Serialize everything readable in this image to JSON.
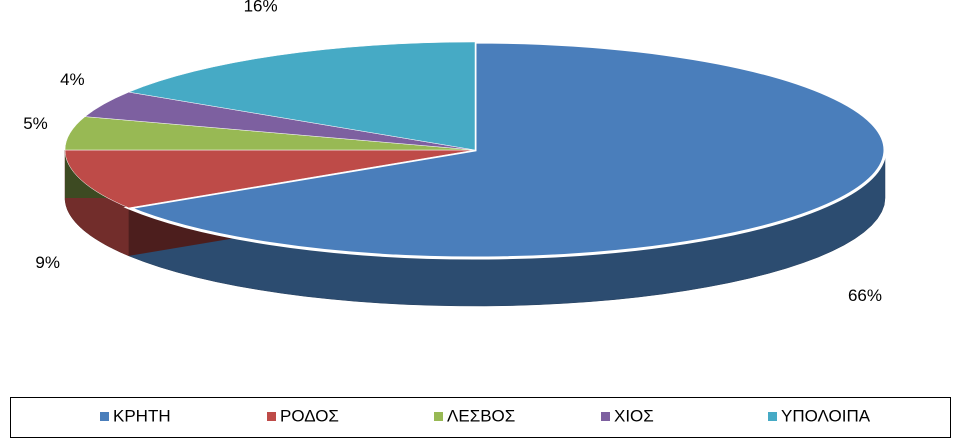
{
  "chart_data": {
    "type": "pie3d",
    "categories": [
      "ΚΡΗΤΗ",
      "ΡΟΔΟΣ",
      "ΛΕΣΒΟΣ",
      "ΧΙΟΣ",
      "ΥΠΟΛΟΙΠΑ"
    ],
    "values": [
      66,
      9,
      5,
      4,
      16
    ],
    "value_labels": [
      "66%",
      "9%",
      "5%",
      "4%",
      "16%"
    ],
    "colors": [
      "#4a7ebb",
      "#be4b48",
      "#98b954",
      "#7d60a0",
      "#46aac5"
    ],
    "legend": "bottom"
  }
}
